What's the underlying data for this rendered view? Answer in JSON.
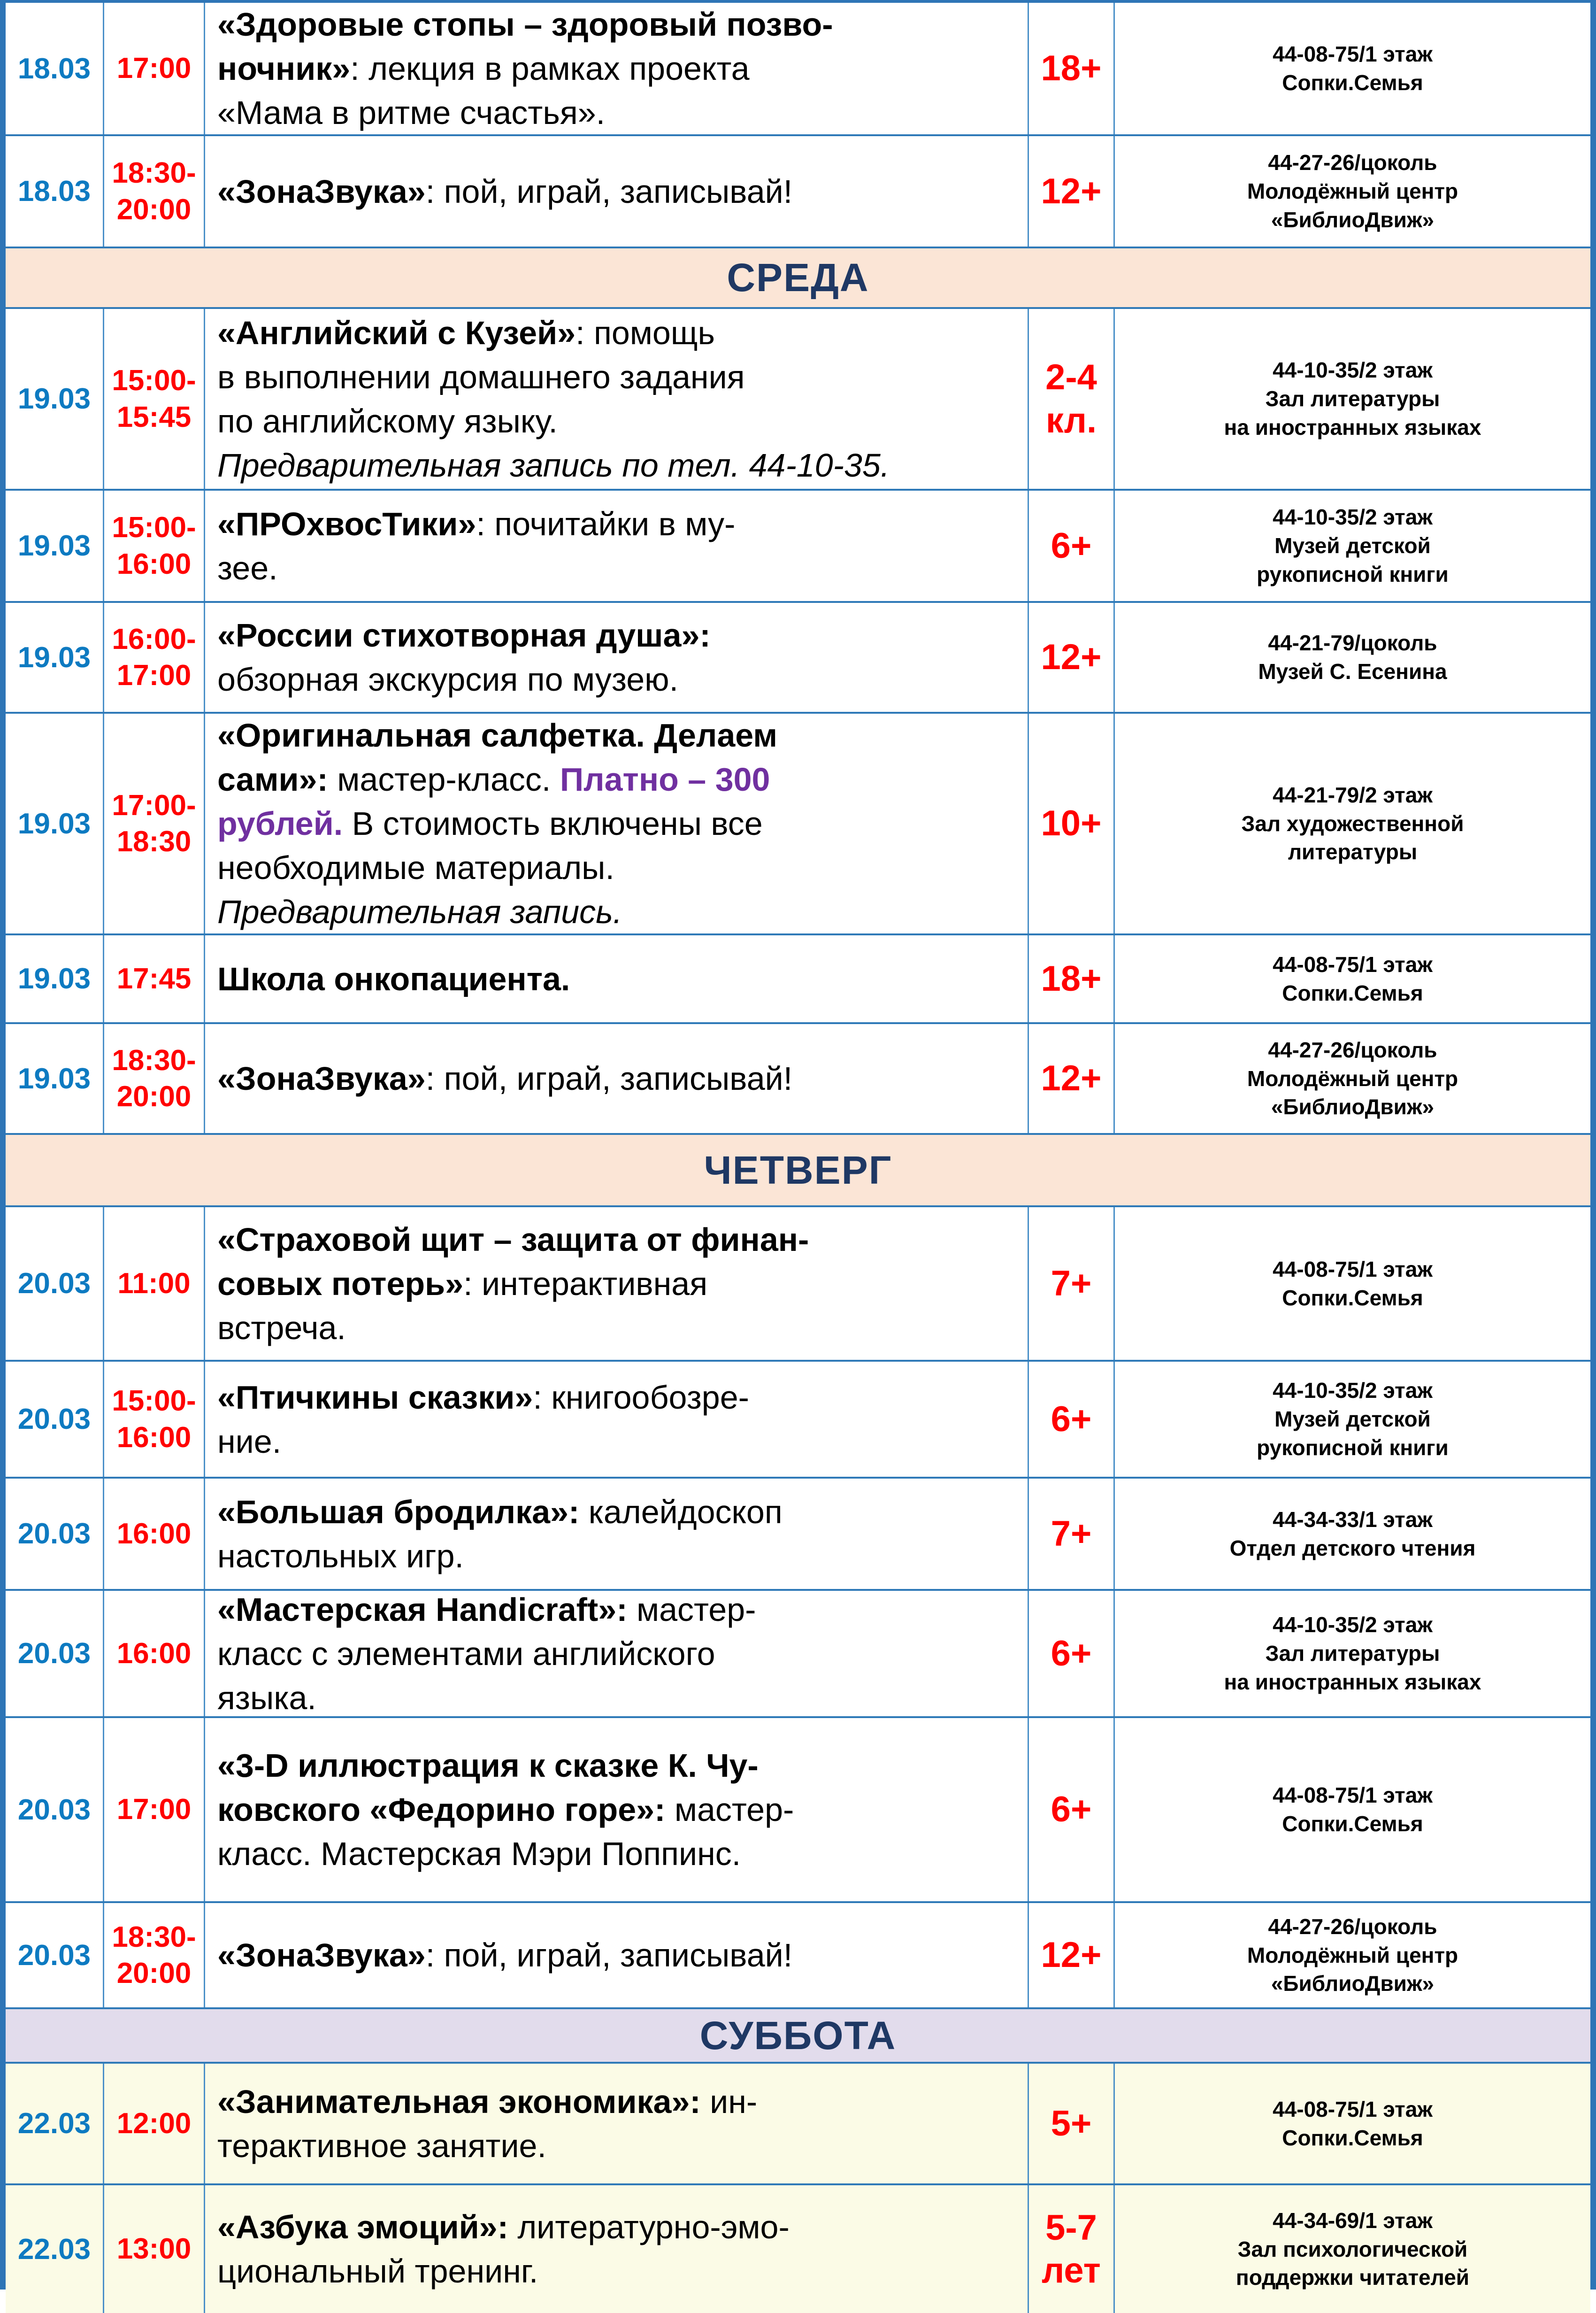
{
  "document": {
    "kind": "library-events-schedule-table",
    "column_names": [
      "date",
      "time",
      "event",
      "age",
      "location"
    ]
  },
  "colors": {
    "date_blue": "#0d7ac1",
    "time_red": "#ff0000",
    "age_red": "#ff0000",
    "price_purple": "#7030a0",
    "day_header_navy": "#1f3864",
    "band_peach": "#fbe5d6",
    "band_lavender": "#e2dcec",
    "row_cream": "#fbfbe6",
    "grid_vertical": "#4a90c8",
    "grid_horizontal": "#2f7ab8",
    "outer_border": "#2e75b6"
  },
  "rows": [
    {
      "type": "event",
      "date": "18.03",
      "time": [
        "17:00"
      ],
      "desc": [
        [
          {
            "t": "«Здоровые стопы – здоровый позво-",
            "s": "b"
          }
        ],
        [
          {
            "t": "ночник»",
            "s": "b"
          },
          {
            "t": ": лекция в рамках проекта"
          }
        ],
        [
          {
            "t": "«Мама в ритме счастья»."
          }
        ]
      ],
      "age": [
        "18+"
      ],
      "loc": [
        "44-08-75/1 этаж",
        "Сопки.Семья"
      ],
      "bg": "#ffffff"
    },
    {
      "type": "event",
      "date": "18.03",
      "time": [
        "18:30-",
        "20:00"
      ],
      "desc": [
        [
          {
            "t": "«ЗонаЗвука»",
            "s": "b"
          },
          {
            "t": ": пой, играй, записывай!"
          }
        ]
      ],
      "age": [
        "12+"
      ],
      "loc": [
        "44-27-26/цоколь",
        "Молодёжный центр",
        "«БиблиоДвиж»"
      ],
      "bg": "#ffffff"
    },
    {
      "type": "day",
      "label": "СРЕДА",
      "bg": "#fbe5d6"
    },
    {
      "type": "event",
      "date": "19.03",
      "time": [
        "15:00-",
        "15:45"
      ],
      "desc": [
        [
          {
            "t": "«Английский с Кузей»",
            "s": "b"
          },
          {
            "t": ": помощь"
          }
        ],
        [
          {
            "t": "в выполнении домашнего задания"
          }
        ],
        [
          {
            "t": "по английскому языку."
          }
        ],
        [
          {
            "t": "Предварительная запись по тел. 44-10-35.",
            "s": "i"
          }
        ]
      ],
      "age": [
        "2-4",
        "кл."
      ],
      "loc": [
        "44-10-35/2 этаж",
        "Зал литературы",
        "на иностранных языках"
      ],
      "bg": "#ffffff"
    },
    {
      "type": "event",
      "date": "19.03",
      "time": [
        "15:00-",
        "16:00"
      ],
      "desc": [
        [
          {
            "t": "«ПРОхвосТики»",
            "s": "b"
          },
          {
            "t": ": почитайки в му-"
          }
        ],
        [
          {
            "t": "зее."
          }
        ]
      ],
      "age": [
        "6+"
      ],
      "loc": [
        "44-10-35/2 этаж",
        "Музей детской",
        "рукописной книги"
      ],
      "bg": "#ffffff"
    },
    {
      "type": "event",
      "date": "19.03",
      "time": [
        "16:00-",
        "17:00"
      ],
      "desc": [
        [
          {
            "t": "«России стихотворная душа»:",
            "s": "b"
          }
        ],
        [
          {
            "t": "обзорная экскурсия по музею."
          }
        ]
      ],
      "age": [
        "12+"
      ],
      "loc": [
        "44-21-79/цоколь",
        "Музей С. Есенина"
      ],
      "bg": "#ffffff"
    },
    {
      "type": "event",
      "date": "19.03",
      "time": [
        "17:00-",
        "18:30"
      ],
      "desc": [
        [
          {
            "t": "«Оригинальная салфетка. Делаем",
            "s": "b"
          }
        ],
        [
          {
            "t": "сами»:",
            "s": "b"
          },
          {
            "t": " мастер-класс. "
          },
          {
            "t": "Платно – 300",
            "s": "p"
          }
        ],
        [
          {
            "t": "рублей.",
            "s": "p"
          },
          {
            "t": " В стоимость включены все"
          }
        ],
        [
          {
            "t": "необходимые материалы."
          }
        ],
        [
          {
            "t": "Предварительная запись.",
            "s": "i"
          }
        ]
      ],
      "age": [
        "10+"
      ],
      "loc": [
        "44-21-79/2 этаж",
        "Зал художественной",
        "литературы"
      ],
      "bg": "#ffffff"
    },
    {
      "type": "event",
      "date": "19.03",
      "time": [
        "17:45"
      ],
      "desc": [
        [
          {
            "t": "Школа онкопациента.",
            "s": "b"
          }
        ]
      ],
      "age": [
        "18+"
      ],
      "loc": [
        "44-08-75/1 этаж",
        "Сопки.Семья"
      ],
      "bg": "#ffffff"
    },
    {
      "type": "event",
      "date": "19.03",
      "time": [
        "18:30-",
        "20:00"
      ],
      "desc": [
        [
          {
            "t": "«ЗонаЗвука»",
            "s": "b"
          },
          {
            "t": ": пой, играй, записывай!"
          }
        ]
      ],
      "age": [
        "12+"
      ],
      "loc": [
        "44-27-26/цоколь",
        "Молодёжный центр",
        "«БиблиоДвиж»"
      ],
      "bg": "#ffffff"
    },
    {
      "type": "day",
      "label": "ЧЕТВЕРГ",
      "bg": "#fbe5d6"
    },
    {
      "type": "event",
      "date": "20.03",
      "time": [
        "11:00"
      ],
      "desc": [
        [
          {
            "t": "«Страховой щит – защита от финан-",
            "s": "b"
          }
        ],
        [
          {
            "t": "совых потерь»",
            "s": "b"
          },
          {
            "t": ": интерактивная"
          }
        ],
        [
          {
            "t": "встреча."
          }
        ]
      ],
      "age": [
        "7+"
      ],
      "loc": [
        "44-08-75/1 этаж",
        "Сопки.Семья"
      ],
      "bg": "#ffffff"
    },
    {
      "type": "event",
      "date": "20.03",
      "time": [
        "15:00-",
        "16:00"
      ],
      "desc": [
        [
          {
            "t": "«Птичкины сказки»",
            "s": "b"
          },
          {
            "t": ": книгообозре-"
          }
        ],
        [
          {
            "t": "ние."
          }
        ]
      ],
      "age": [
        "6+"
      ],
      "loc": [
        "44-10-35/2 этаж",
        "Музей детской",
        "рукописной книги"
      ],
      "bg": "#ffffff"
    },
    {
      "type": "event",
      "date": "20.03",
      "time": [
        "16:00"
      ],
      "desc": [
        [
          {
            "t": "«Большая бродилка»:",
            "s": "b"
          },
          {
            "t": " калейдоскоп"
          }
        ],
        [
          {
            "t": "настольных игр."
          }
        ]
      ],
      "age": [
        "7+"
      ],
      "loc": [
        "44-34-33/1 этаж",
        "Отдел детского чтения"
      ],
      "bg": "#ffffff"
    },
    {
      "type": "event",
      "date": "20.03",
      "time": [
        "16:00"
      ],
      "desc": [
        [
          {
            "t": "«Мастерская Handicraft»:",
            "s": "b"
          },
          {
            "t": " мастер-"
          }
        ],
        [
          {
            "t": "класс с элементами английского"
          }
        ],
        [
          {
            "t": "языка."
          }
        ]
      ],
      "age": [
        "6+"
      ],
      "loc": [
        "44-10-35/2 этаж",
        "Зал литературы",
        "на иностранных языках"
      ],
      "bg": "#ffffff"
    },
    {
      "type": "event",
      "date": "20.03",
      "time": [
        "17:00"
      ],
      "desc": [
        [
          {
            "t": "«3-D иллюстрация к сказке К. Чу-",
            "s": "b"
          }
        ],
        [
          {
            "t": "ковского «Федорино горе»:",
            "s": "b"
          },
          {
            "t": " мастер-"
          }
        ],
        [
          {
            "t": "класс. Мастерская Мэри Поппинс."
          }
        ]
      ],
      "age": [
        "6+"
      ],
      "loc": [
        "44-08-75/1 этаж",
        "Сопки.Семья"
      ],
      "bg": "#ffffff"
    },
    {
      "type": "event",
      "date": "20.03",
      "time": [
        "18:30-",
        "20:00"
      ],
      "desc": [
        [
          {
            "t": "«ЗонаЗвука»",
            "s": "b"
          },
          {
            "t": ": пой, играй, записывай!"
          }
        ]
      ],
      "age": [
        "12+"
      ],
      "loc": [
        "44-27-26/цоколь",
        "Молодёжный центр",
        "«БиблиоДвиж»"
      ],
      "bg": "#ffffff"
    },
    {
      "type": "day",
      "label": "СУББОТА",
      "bg": "#e2dcec"
    },
    {
      "type": "event",
      "date": "22.03",
      "time": [
        "12:00"
      ],
      "desc": [
        [
          {
            "t": "«Занимательная экономика»:",
            "s": "b"
          },
          {
            "t": " ин-"
          }
        ],
        [
          {
            "t": "терактивное занятие."
          }
        ]
      ],
      "age": [
        "5+"
      ],
      "loc": [
        "44-08-75/1 этаж",
        "Сопки.Семья"
      ],
      "bg": "#fbfbe6"
    },
    {
      "type": "event",
      "date": "22.03",
      "time": [
        "13:00"
      ],
      "desc": [
        [
          {
            "t": "«Азбука эмоций»:",
            "s": "b"
          },
          {
            "t": " литературно-эмо-"
          }
        ],
        [
          {
            "t": "циональный тренинг."
          }
        ]
      ],
      "age": [
        "5-7",
        "лет"
      ],
      "loc": [
        "44-34-69/1 этаж",
        "Зал психологической",
        "поддержки читателей"
      ],
      "bg": "#fbfbe6"
    }
  ]
}
